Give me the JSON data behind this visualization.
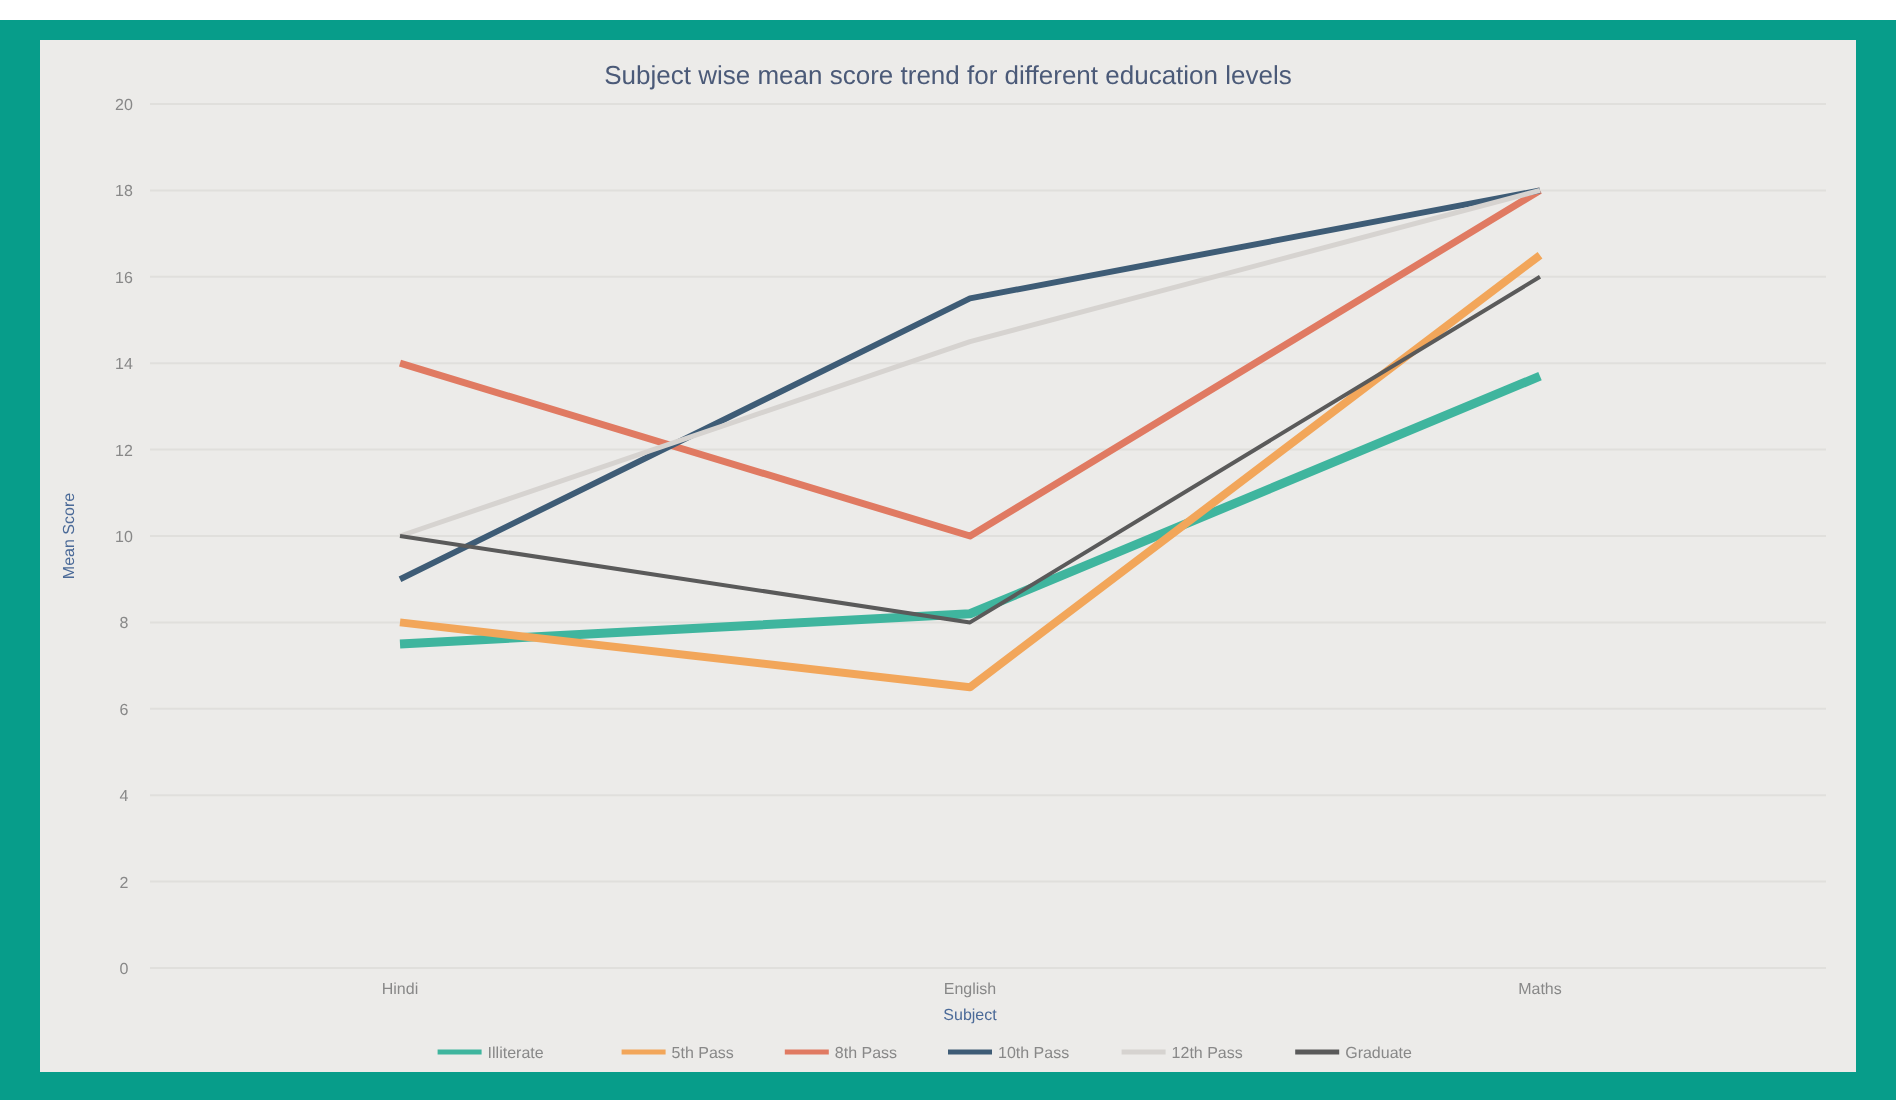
{
  "chart_data": {
    "type": "line",
    "title": "Subject wise mean score trend for different education levels",
    "xlabel": "Subject",
    "ylabel": "Mean Score",
    "categories": [
      "Hindi",
      "English",
      "Maths"
    ],
    "ylim": [
      0,
      20
    ],
    "yticks": [
      0,
      2,
      4,
      6,
      8,
      10,
      12,
      14,
      16,
      18,
      20
    ],
    "grid": "y",
    "legend": "bottom",
    "marker": "none",
    "line_style": "solid",
    "series": [
      {
        "name": "Illiterate",
        "color": "#3fb59e",
        "values": [
          7.5,
          8.2,
          13.7
        ]
      },
      {
        "name": "5th Pass",
        "color": "#f2a65a",
        "values": [
          8,
          6.5,
          16.5
        ]
      },
      {
        "name": "8th Pass",
        "color": "#e07a62",
        "values": [
          14,
          10,
          18
        ]
      },
      {
        "name": "10th Pass",
        "color": "#3e5c76",
        "values": [
          9,
          15.5,
          18
        ]
      },
      {
        "name": "12th Pass",
        "color": "#d6d3d0",
        "values": [
          10,
          14.5,
          18
        ]
      },
      {
        "name": "Graduate",
        "color": "#5a5a5a",
        "values": [
          10,
          8,
          16
        ]
      }
    ]
  }
}
